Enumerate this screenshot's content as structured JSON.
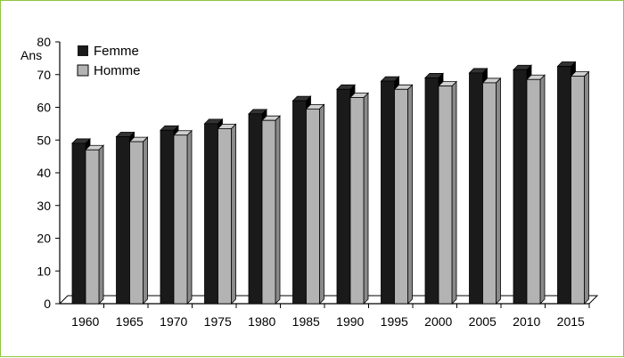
{
  "chart_data": {
    "type": "bar",
    "title": "",
    "xlabel": "",
    "ylabel": "Ans",
    "ylim": [
      0,
      80
    ],
    "yticks": [
      0,
      10,
      20,
      30,
      40,
      50,
      60,
      70,
      80
    ],
    "categories": [
      "1960",
      "1965",
      "1970",
      "1975",
      "1980",
      "1985",
      "1990",
      "1995",
      "2000",
      "2005",
      "2010",
      "2015"
    ],
    "series": [
      {
        "name": "Femme",
        "color": "#1a1a1a",
        "values": [
          49,
          51,
          53,
          55,
          58,
          62,
          65.5,
          68,
          69,
          70.5,
          71.5,
          72.5
        ]
      },
      {
        "name": "Homme",
        "color": "#b3b3b3",
        "values": [
          47,
          49.5,
          51.5,
          53.5,
          56,
          59.5,
          63,
          65.5,
          66.5,
          67.5,
          68.5,
          69.5
        ]
      }
    ],
    "grid": false,
    "legend_position": "top-left"
  }
}
